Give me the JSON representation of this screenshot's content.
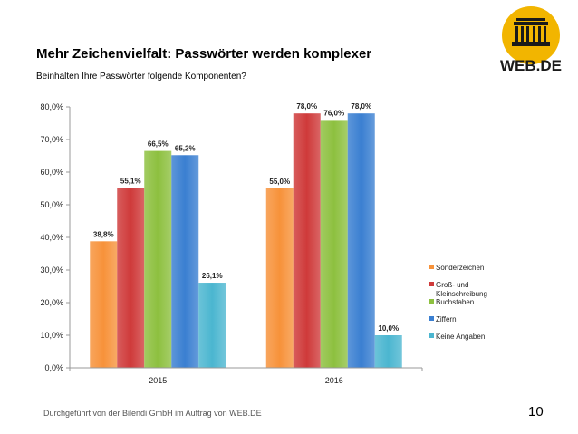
{
  "header": {
    "title": "Mehr Zeichenvielfalt: Passwörter werden komplexer",
    "subtitle": "Beinhalten Ihre Passwörter folgende Komponenten?"
  },
  "logo": {
    "text": "WEB.DE",
    "icon": "brandenburg-gate-icon",
    "color": "#f2b500"
  },
  "footer": {
    "source": "Durchgeführt von der Bilendi GmbH im Auftrag von WEB.DE",
    "page": "10"
  },
  "chart_data": {
    "type": "bar",
    "categories": [
      "2015",
      "2016"
    ],
    "series": [
      {
        "name": "Sonderzeichen",
        "legend_lines": [
          "Sonderzeichen"
        ],
        "values": [
          38.8,
          55.0
        ],
        "labels": [
          "38,8%",
          "55,0%"
        ],
        "color": "#f7923a"
      },
      {
        "name": "Groß- und Kleinschreibung",
        "legend_lines": [
          "Groß- und",
          "Kleinschreibung"
        ],
        "values": [
          55.1,
          78.0
        ],
        "labels": [
          "55,1%",
          "78,0%"
        ],
        "color": "#cf3a3a"
      },
      {
        "name": "Buchstaben",
        "legend_lines": [
          "Buchstaben"
        ],
        "values": [
          66.5,
          76.0
        ],
        "labels": [
          "66,5%",
          "76,0%"
        ],
        "color": "#8dc03f"
      },
      {
        "name": "Ziffern",
        "legend_lines": [
          "Ziffern"
        ],
        "values": [
          65.2,
          78.0
        ],
        "labels": [
          "65,2%",
          "78,0%"
        ],
        "color": "#3a7fd1"
      },
      {
        "name": "Keine Angaben",
        "legend_lines": [
          "Keine Angaben"
        ],
        "values": [
          26.1,
          10.0
        ],
        "labels": [
          "26,1%",
          "10,0%"
        ],
        "color": "#4bb6d0"
      }
    ],
    "y_ticks": [
      "0,0%",
      "10,0%",
      "20,0%",
      "30,0%",
      "40,0%",
      "50,0%",
      "60,0%",
      "70,0%",
      "80,0%"
    ],
    "ylim": [
      0,
      80
    ],
    "grid": false,
    "legend": "right",
    "xlabel": "",
    "ylabel": ""
  }
}
